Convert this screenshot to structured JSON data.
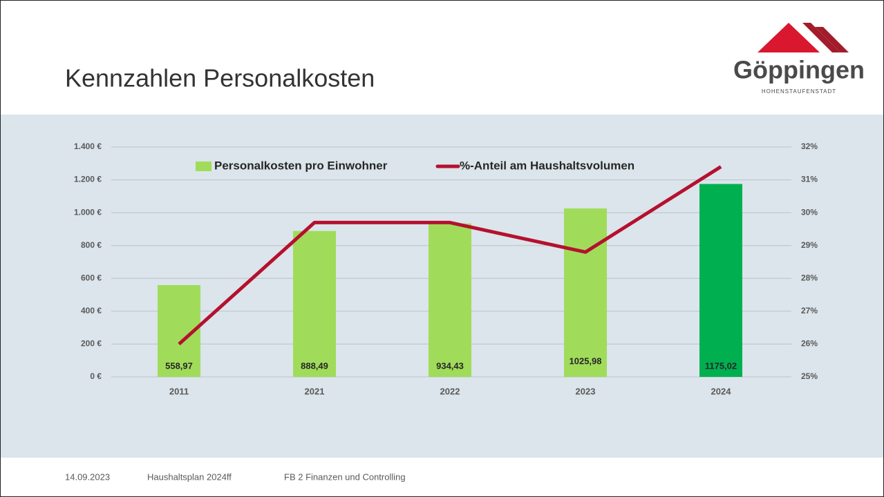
{
  "title": "Kennzahlen Personalkosten",
  "logo": {
    "name": "Göppingen",
    "subtitle": "HOHENSTAUFENSTADT"
  },
  "footer": [
    "14.09.2023",
    "Haushaltsplan 2024ff",
    "FB 2 Finanzen und Controlling"
  ],
  "chart_data": {
    "type": "bar",
    "categories": [
      "2011",
      "2021",
      "2022",
      "2023",
      "2024"
    ],
    "series": [
      {
        "name": "Personalkosten pro Einwohner",
        "type": "bar",
        "color": "#a0dc5a",
        "colors": [
          "#a0dc5a",
          "#a0dc5a",
          "#a0dc5a",
          "#a0dc5a",
          "#00b050"
        ],
        "values": [
          558.97,
          888.49,
          934.43,
          1025.98,
          1175.02
        ],
        "value_labels": [
          "558,97",
          "888,49",
          "934,43",
          "1025,98",
          "1175,02"
        ]
      },
      {
        "name": "%-Anteil am Haushaltsvolumen",
        "type": "line",
        "color": "#b5102e",
        "axis": "y2",
        "values": [
          26.0,
          29.7,
          29.7,
          28.8,
          31.4
        ]
      }
    ],
    "ylim": [
      0,
      1400
    ],
    "yticks": [
      {
        "value": 0,
        "label": "0 €"
      },
      {
        "value": 200,
        "label": "200 €"
      },
      {
        "value": 400,
        "label": "400 €"
      },
      {
        "value": 600,
        "label": "600 €"
      },
      {
        "value": 800,
        "label": "800 €"
      },
      {
        "value": 1000,
        "label": "1.000 €"
      },
      {
        "value": 1200,
        "label": "1.200 €"
      },
      {
        "value": 1400,
        "label": "1.400 €"
      }
    ],
    "y2lim": [
      25,
      32
    ],
    "y2ticks": [
      {
        "value": 25,
        "label": "25%"
      },
      {
        "value": 26,
        "label": "26%"
      },
      {
        "value": 27,
        "label": "27%"
      },
      {
        "value": 28,
        "label": "28%"
      },
      {
        "value": 29,
        "label": "29%"
      },
      {
        "value": 30,
        "label": "30%"
      },
      {
        "value": 31,
        "label": "31%"
      },
      {
        "value": 32,
        "label": "32%"
      }
    ],
    "grid": true,
    "legend": "top"
  }
}
